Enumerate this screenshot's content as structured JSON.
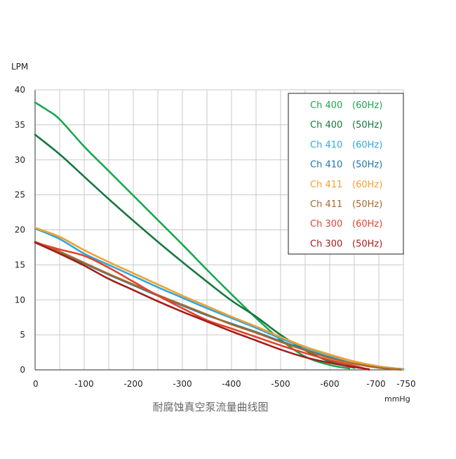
{
  "chart_data": {
    "type": "line",
    "title": "耐腐蚀真空泵流量曲线图",
    "xlabel": "mmHg",
    "ylabel": "LPM",
    "xlim": [
      0,
      -750
    ],
    "ylim": [
      0,
      40
    ],
    "x_ticks": [
      {
        "value": 0,
        "label": "0"
      },
      {
        "value": -100,
        "label": "-100"
      },
      {
        "value": -200,
        "label": "-200"
      },
      {
        "value": -300,
        "label": "-300"
      },
      {
        "value": -400,
        "label": "-400"
      },
      {
        "value": -500,
        "label": "-500"
      },
      {
        "value": -600,
        "label": "-600"
      },
      {
        "value": -700,
        "label": "-700"
      },
      {
        "value": -750,
        "label": "-750"
      }
    ],
    "y_ticks": [
      0,
      5,
      10,
      15,
      20,
      25,
      30,
      35,
      40
    ],
    "grid": true,
    "legend_position": "top-right",
    "series": [
      {
        "model": "Ch 400",
        "freq": "(60Hz)",
        "color": "#1aa74f",
        "points": [
          [
            0,
            38.2
          ],
          [
            -25,
            37.1
          ],
          [
            -50,
            35.8
          ],
          [
            -100,
            31.9
          ],
          [
            -150,
            28.4
          ],
          [
            -200,
            24.9
          ],
          [
            -250,
            21.4
          ],
          [
            -300,
            17.9
          ],
          [
            -350,
            14.3
          ],
          [
            -400,
            10.8
          ],
          [
            -450,
            7.4
          ],
          [
            -500,
            4.3
          ],
          [
            -550,
            1.9
          ],
          [
            -600,
            0.7
          ],
          [
            -640,
            0.2
          ]
        ]
      },
      {
        "model": "Ch 400",
        "freq": "(50Hz)",
        "color": "#17773f",
        "points": [
          [
            0,
            33.6
          ],
          [
            -50,
            30.8
          ],
          [
            -100,
            27.6
          ],
          [
            -150,
            24.4
          ],
          [
            -200,
            21.3
          ],
          [
            -250,
            18.3
          ],
          [
            -300,
            15.4
          ],
          [
            -350,
            12.6
          ],
          [
            -400,
            9.9
          ],
          [
            -450,
            7.6
          ],
          [
            -500,
            5.0
          ],
          [
            -550,
            2.8
          ],
          [
            -600,
            1.2
          ],
          [
            -650,
            0.3
          ]
        ]
      },
      {
        "model": "Ch 410",
        "freq": "(60Hz)",
        "color": "#2fa8db",
        "points": [
          [
            0,
            20.2
          ],
          [
            -50,
            18.7
          ],
          [
            -100,
            16.6
          ],
          [
            -150,
            15.0
          ],
          [
            -200,
            13.4
          ],
          [
            -250,
            11.8
          ],
          [
            -300,
            10.3
          ],
          [
            -350,
            8.8
          ],
          [
            -400,
            7.4
          ],
          [
            -450,
            6.0
          ],
          [
            -500,
            4.5
          ],
          [
            -550,
            3.2
          ],
          [
            -600,
            2.1
          ],
          [
            -650,
            1.2
          ],
          [
            -700,
            0.5
          ],
          [
            -750,
            0.1
          ]
        ]
      },
      {
        "model": "Ch 410",
        "freq": "(50Hz)",
        "color": "#1f78a6",
        "points": [
          [
            0,
            18.2
          ],
          [
            -50,
            16.7
          ],
          [
            -100,
            15.2
          ],
          [
            -150,
            13.6
          ],
          [
            -200,
            12.1
          ],
          [
            -250,
            10.6
          ],
          [
            -300,
            9.2
          ],
          [
            -350,
            7.8
          ],
          [
            -400,
            6.6
          ],
          [
            -450,
            5.4
          ],
          [
            -500,
            4.1
          ],
          [
            -550,
            2.9
          ],
          [
            -600,
            1.8
          ],
          [
            -650,
            0.9
          ],
          [
            -700,
            0.3
          ],
          [
            -740,
            0.1
          ]
        ]
      },
      {
        "model": "Ch 411",
        "freq": "(60Hz)",
        "color": "#f0a030",
        "points": [
          [
            0,
            20.3
          ],
          [
            -50,
            19.0
          ],
          [
            -100,
            17.1
          ],
          [
            -150,
            15.4
          ],
          [
            -200,
            13.8
          ],
          [
            -250,
            12.2
          ],
          [
            -300,
            10.6
          ],
          [
            -350,
            9.1
          ],
          [
            -400,
            7.6
          ],
          [
            -450,
            6.2
          ],
          [
            -500,
            4.7
          ],
          [
            -550,
            3.3
          ],
          [
            -600,
            2.2
          ],
          [
            -650,
            1.2
          ],
          [
            -700,
            0.5
          ],
          [
            -750,
            0.0
          ]
        ]
      },
      {
        "model": "Ch 411",
        "freq": "(50Hz)",
        "color": "#a66a2c",
        "points": [
          [
            0,
            18.3
          ],
          [
            -50,
            16.9
          ],
          [
            -100,
            15.3
          ],
          [
            -150,
            13.7
          ],
          [
            -200,
            12.2
          ],
          [
            -250,
            10.7
          ],
          [
            -300,
            9.3
          ],
          [
            -350,
            7.9
          ],
          [
            -400,
            6.5
          ],
          [
            -450,
            5.3
          ],
          [
            -500,
            4.0
          ],
          [
            -550,
            2.8
          ],
          [
            -600,
            1.7
          ],
          [
            -650,
            0.9
          ],
          [
            -700,
            0.3
          ],
          [
            -745,
            0.0
          ]
        ]
      },
      {
        "model": "Ch 300",
        "freq": "(60Hz)",
        "color": "#e2432f",
        "points": [
          [
            0,
            18.2
          ],
          [
            -50,
            17.2
          ],
          [
            -100,
            16.3
          ],
          [
            -150,
            14.6
          ],
          [
            -200,
            12.6
          ],
          [
            -250,
            10.6
          ],
          [
            -300,
            8.8
          ],
          [
            -350,
            7.1
          ],
          [
            -400,
            5.9
          ],
          [
            -450,
            4.7
          ],
          [
            -500,
            3.5
          ],
          [
            -550,
            2.4
          ],
          [
            -600,
            1.4
          ],
          [
            -650,
            0.6
          ],
          [
            -680,
            0.0
          ]
        ]
      },
      {
        "model": "Ch 300",
        "freq": "(50Hz)",
        "color": "#a31f1a",
        "points": [
          [
            0,
            18.2
          ],
          [
            -50,
            16.6
          ],
          [
            -100,
            14.9
          ],
          [
            -150,
            13.0
          ],
          [
            -200,
            11.4
          ],
          [
            -250,
            9.8
          ],
          [
            -300,
            8.3
          ],
          [
            -350,
            6.9
          ],
          [
            -400,
            5.5
          ],
          [
            -450,
            4.2
          ],
          [
            -500,
            2.9
          ],
          [
            -550,
            1.8
          ],
          [
            -600,
            1.0
          ],
          [
            -650,
            0.4
          ],
          [
            -680,
            0.1
          ]
        ]
      }
    ]
  }
}
